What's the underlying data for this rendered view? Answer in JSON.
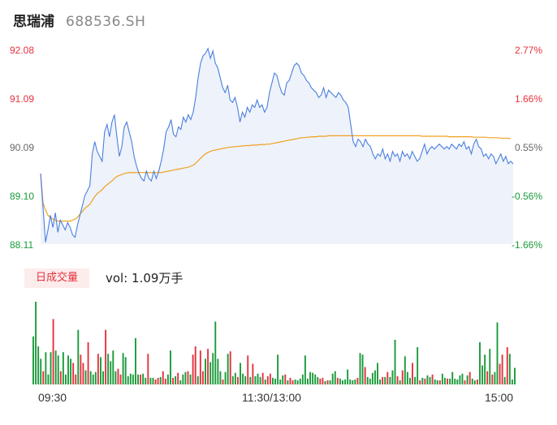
{
  "header": {
    "name": "思瑞浦",
    "code": "688536.SH"
  },
  "chart_data": [
    {
      "type": "line",
      "prev_close": 89.6,
      "y_left_ticks": [
        "92.08",
        "91.09",
        "90.09",
        "89.10",
        "88.11"
      ],
      "y_right_ticks": [
        "2.77%",
        "1.66%",
        "0.55%",
        "-0.56%",
        "-1.66%"
      ],
      "ylim": [
        88.11,
        92.08
      ],
      "series": [
        {
          "role": "price",
          "color": "#4a7fe0",
          "values": [
            89.55,
            88.85,
            88.15,
            88.4,
            88.7,
            88.45,
            88.75,
            88.35,
            88.6,
            88.5,
            88.4,
            88.55,
            88.45,
            88.3,
            88.25,
            88.5,
            88.7,
            88.9,
            89.1,
            89.2,
            89.3,
            89.95,
            90.2,
            90.0,
            89.9,
            89.8,
            90.4,
            90.55,
            90.3,
            90.6,
            90.75,
            90.3,
            89.9,
            90.1,
            90.5,
            90.6,
            90.4,
            90.2,
            89.9,
            89.7,
            89.55,
            89.45,
            89.4,
            89.6,
            89.45,
            89.4,
            89.6,
            89.45,
            89.6,
            89.8,
            90.05,
            90.4,
            90.5,
            90.65,
            90.35,
            90.3,
            90.5,
            90.45,
            90.7,
            90.6,
            90.75,
            90.65,
            90.8,
            91.1,
            91.5,
            91.8,
            91.95,
            92.0,
            92.1,
            91.9,
            92.05,
            91.8,
            91.7,
            91.5,
            91.3,
            91.2,
            91.35,
            91.05,
            91.0,
            91.1,
            90.9,
            90.6,
            90.8,
            90.7,
            90.9,
            90.8,
            90.95,
            90.9,
            91.05,
            90.9,
            90.95,
            90.8,
            90.9,
            91.2,
            91.4,
            91.6,
            91.55,
            91.35,
            91.2,
            91.15,
            91.4,
            91.45,
            91.6,
            91.75,
            91.8,
            91.75,
            91.6,
            91.55,
            91.45,
            91.4,
            91.3,
            91.25,
            91.2,
            91.1,
            91.15,
            91.3,
            91.1,
            91.25,
            91.2,
            91.15,
            91.1,
            91.2,
            91.15,
            91.05,
            91.0,
            90.9,
            90.55,
            90.2,
            90.1,
            90.25,
            90.2,
            90.1,
            90.25,
            90.15,
            90.1,
            89.95,
            89.85,
            89.95,
            89.9,
            90.05,
            89.85,
            89.95,
            89.8,
            90.0,
            89.9,
            89.95,
            89.8,
            90.0,
            89.9,
            89.95,
            89.85,
            90.0,
            89.9,
            89.8,
            89.85,
            90.0,
            90.15,
            89.95,
            90.05,
            90.1,
            90.05,
            90.1,
            90.15,
            90.1,
            90.05,
            90.1,
            90.05,
            90.15,
            90.1,
            90.05,
            90.15,
            90.1,
            90.2,
            90.05,
            90.1,
            89.95,
            90.15,
            90.25,
            90.1,
            90.05,
            89.9,
            89.95,
            89.85,
            89.95,
            89.9,
            89.75,
            89.85,
            89.95,
            89.8,
            89.9,
            89.75,
            89.8,
            89.75
          ]
        },
        {
          "role": "average",
          "color": "#f0a020",
          "values": [
            89.55,
            88.95,
            88.8,
            88.7,
            88.65,
            88.62,
            88.6,
            88.58,
            88.58,
            88.58,
            88.58,
            88.58,
            88.58,
            88.6,
            88.62,
            88.66,
            88.72,
            88.78,
            88.84,
            88.88,
            88.92,
            89.0,
            89.08,
            89.14,
            89.18,
            89.22,
            89.28,
            89.32,
            89.36,
            89.4,
            89.45,
            89.49,
            89.51,
            89.53,
            89.55,
            89.56,
            89.57,
            89.57,
            89.57,
            89.57,
            89.57,
            89.57,
            89.57,
            89.57,
            89.57,
            89.57,
            89.57,
            89.57,
            89.57,
            89.57,
            89.58,
            89.59,
            89.6,
            89.61,
            89.62,
            89.63,
            89.64,
            89.65,
            89.66,
            89.67,
            89.68,
            89.7,
            89.72,
            89.76,
            89.81,
            89.86,
            89.91,
            89.95,
            89.98,
            90.0,
            90.02,
            90.03,
            90.04,
            90.05,
            90.06,
            90.07,
            90.08,
            90.09,
            90.09,
            90.1,
            90.1,
            90.11,
            90.11,
            90.12,
            90.12,
            90.12,
            90.13,
            90.13,
            90.13,
            90.14,
            90.14,
            90.14,
            90.15,
            90.15,
            90.16,
            90.17,
            90.18,
            90.19,
            90.2,
            90.21,
            90.22,
            90.23,
            90.24,
            90.25,
            90.26,
            90.27,
            90.28,
            90.28,
            90.29,
            90.29,
            90.3,
            90.3,
            90.3,
            90.31,
            90.31,
            90.31,
            90.31,
            90.32,
            90.32,
            90.32,
            90.32,
            90.32,
            90.32,
            90.32,
            90.32,
            90.32,
            90.32,
            90.32,
            90.32,
            90.32,
            90.32,
            90.32,
            90.32,
            90.32,
            90.32,
            90.32,
            90.32,
            90.32,
            90.32,
            90.32,
            90.32,
            90.32,
            90.32,
            90.32,
            90.32,
            90.32,
            90.32,
            90.32,
            90.32,
            90.32,
            90.32,
            90.32,
            90.32,
            90.32,
            90.32,
            90.31,
            90.31,
            90.31,
            90.31,
            90.31,
            90.31,
            90.31,
            90.31,
            90.31,
            90.31,
            90.31,
            90.3,
            90.3,
            90.3,
            90.3,
            90.3,
            90.3,
            90.3,
            90.3,
            90.3,
            90.3,
            90.29,
            90.29,
            90.29,
            90.29,
            90.29,
            90.29,
            90.28,
            90.28,
            90.28,
            90.28,
            90.28,
            90.27,
            90.27,
            90.27,
            90.27,
            90.26
          ]
        }
      ]
    },
    {
      "type": "bar",
      "legend": "日成交量",
      "summary": "vol: 1.09万手",
      "x_labels": [
        "09:30",
        "11:30/13:00",
        "15:00"
      ],
      "up_color": "#e5323e",
      "down_color": "#1a9a3a",
      "values": [
        0.58,
        1.0,
        0.46,
        0.31,
        0.16,
        0.39,
        0.12,
        0.39,
        0.79,
        0.41,
        0.35,
        0.16,
        0.39,
        0.12,
        0.35,
        0.31,
        0.26,
        0.12,
        0.66,
        0.36,
        0.26,
        0.17,
        0.51,
        0.16,
        0.12,
        0.15,
        0.37,
        0.33,
        0.16,
        0.66,
        0.37,
        0.28,
        0.41,
        0.16,
        0.19,
        0.12,
        0.38,
        0.33,
        0.1,
        0.13,
        0.12,
        0.56,
        0.12,
        0.12,
        0.13,
        0.08,
        0.37,
        0.08,
        0.08,
        0.06,
        0.08,
        0.09,
        0.16,
        0.07,
        0.12,
        0.41,
        0.08,
        0.1,
        0.14,
        0.05,
        0.12,
        0.15,
        0.16,
        0.12,
        0.36,
        0.46,
        0.1,
        0.41,
        0.16,
        0.31,
        0.43,
        0.27,
        0.38,
        0.76,
        0.31,
        0.16,
        0.06,
        0.15,
        0.37,
        0.4,
        0.1,
        0.14,
        0.09,
        0.26,
        0.13,
        0.1,
        0.35,
        0.09,
        0.25,
        0.1,
        0.13,
        0.09,
        0.14,
        0.06,
        0.1,
        0.13,
        0.08,
        0.07,
        0.36,
        0.06,
        0.11,
        0.12,
        0.05,
        0.08,
        0.05,
        0.06,
        0.05,
        0.07,
        0.12,
        0.35,
        0.07,
        0.15,
        0.14,
        0.12,
        0.09,
        0.07,
        0.08,
        0.04,
        0.05,
        0.05,
        0.13,
        0.16,
        0.08,
        0.07,
        0.05,
        0.06,
        0.18,
        0.06,
        0.05,
        0.06,
        0.08,
        0.38,
        0.36,
        0.21,
        0.09,
        0.07,
        0.14,
        0.17,
        0.26,
        0.06,
        0.09,
        0.09,
        0.15,
        0.09,
        0.17,
        0.54,
        0.1,
        0.05,
        0.17,
        0.34,
        0.15,
        0.08,
        0.26,
        0.09,
        0.45,
        0.05,
        0.08,
        0.07,
        0.11,
        0.09,
        0.12,
        0.06,
        0.05,
        0.05,
        0.13,
        0.08,
        0.07,
        0.07,
        0.15,
        0.07,
        0.06,
        0.11,
        0.13,
        0.05,
        0.11,
        0.15,
        0.07,
        0.05,
        0.06,
        0.51,
        0.23,
        0.36,
        0.16,
        0.43,
        0.12,
        0.15,
        0.75,
        0.25,
        0.36,
        0.09,
        0.45,
        0.37,
        0.06,
        0.2
      ]
    }
  ]
}
